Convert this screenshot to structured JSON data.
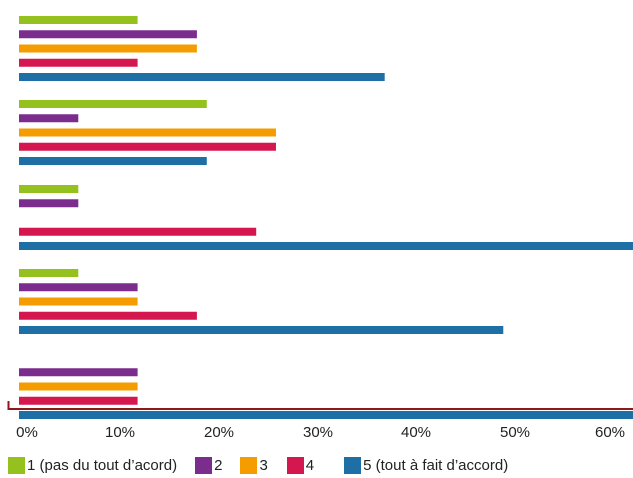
{
  "chart_data": {
    "type": "bar",
    "orientation": "horizontal",
    "groups": [
      "",
      "",
      "",
      "",
      ""
    ],
    "series": [
      {
        "name": "1 (pas du tout d’acord)",
        "color": "#95c11f",
        "values": [
          12,
          19,
          6,
          6,
          0
        ]
      },
      {
        "name": "2",
        "color": "#7b2d8e",
        "values": [
          18,
          6,
          6,
          12,
          12
        ]
      },
      {
        "name": "3",
        "color": "#f59c00",
        "values": [
          18,
          26,
          0,
          12,
          12
        ]
      },
      {
        "name": "4",
        "color": "#d5174f",
        "values": [
          12,
          26,
          24,
          18,
          12
        ]
      },
      {
        "name": "5 (tout à fait d’accord)",
        "color": "#1d6fa5",
        "values": [
          37,
          19,
          63,
          49,
          63
        ]
      }
    ],
    "x_ticks": [
      "0%",
      "10%",
      "20%",
      "30%",
      "40%",
      "50%",
      "60%"
    ],
    "xlim": [
      0,
      63
    ],
    "grid": false,
    "legend_position": "bottom",
    "axis_color": "#8b1a1a"
  }
}
